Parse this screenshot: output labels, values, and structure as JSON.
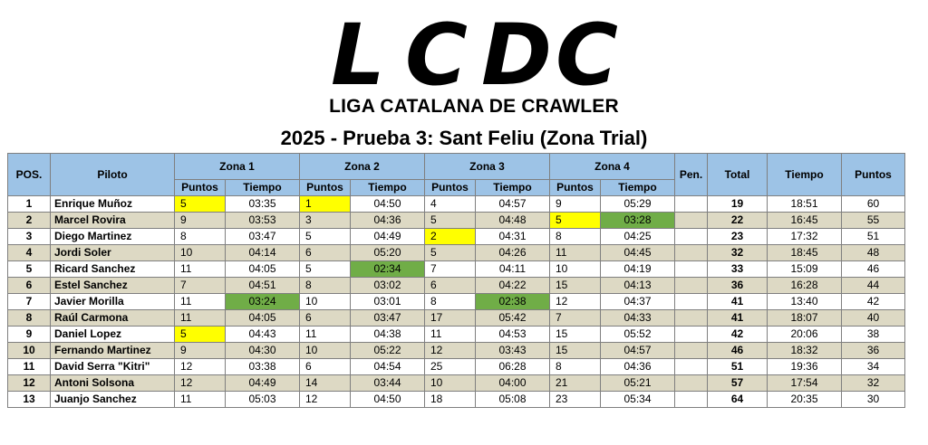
{
  "logo": {
    "letters": [
      "L",
      "C",
      "D",
      "C"
    ],
    "subtitle": "LIGA CATALANA DE CRAWLER"
  },
  "title": "2025 - Prueba 3: Sant Feliu (Zona Trial)",
  "colors": {
    "header": "#9dc3e6",
    "row_alt": "#ddd9c4",
    "highlight_points": "#ffff00",
    "highlight_time": "#70ad47"
  },
  "table": {
    "headers": {
      "pos": "POS.",
      "piloto": "Piloto",
      "zona1": "Zona 1",
      "zona2": "Zona 2",
      "zona3": "Zona 3",
      "zona4": "Zona 4",
      "pen": "Pen.",
      "total": "Total",
      "tiempo": "Tiempo",
      "puntos": "Puntos",
      "sub_puntos": "Puntos",
      "sub_tiempo": "Tiempo"
    },
    "rows": [
      {
        "pos": "1",
        "piloto": "Enrique Muñoz",
        "z1p": "5",
        "z1t": "03:35",
        "z2p": "1",
        "z2t": "04:50",
        "z3p": "4",
        "z3t": "04:57",
        "z4p": "9",
        "z4t": "05:29",
        "pen": "",
        "total": "19",
        "tiempo": "18:51",
        "puntos": "60"
      },
      {
        "pos": "2",
        "piloto": "Marcel Rovira",
        "z1p": "9",
        "z1t": "03:53",
        "z2p": "3",
        "z2t": "04:36",
        "z3p": "5",
        "z3t": "04:48",
        "z4p": "5",
        "z4t": "03:28",
        "pen": "",
        "total": "22",
        "tiempo": "16:45",
        "puntos": "55"
      },
      {
        "pos": "3",
        "piloto": "Diego Martinez",
        "z1p": "8",
        "z1t": "03:47",
        "z2p": "5",
        "z2t": "04:49",
        "z3p": "2",
        "z3t": "04:31",
        "z4p": "8",
        "z4t": "04:25",
        "pen": "",
        "total": "23",
        "tiempo": "17:32",
        "puntos": "51"
      },
      {
        "pos": "4",
        "piloto": "Jordi Soler",
        "z1p": "10",
        "z1t": "04:14",
        "z2p": "6",
        "z2t": "05:20",
        "z3p": "5",
        "z3t": "04:26",
        "z4p": "11",
        "z4t": "04:45",
        "pen": "",
        "total": "32",
        "tiempo": "18:45",
        "puntos": "48"
      },
      {
        "pos": "5",
        "piloto": "Ricard Sanchez",
        "z1p": "11",
        "z1t": "04:05",
        "z2p": "5",
        "z2t": "02:34",
        "z3p": "7",
        "z3t": "04:11",
        "z4p": "10",
        "z4t": "04:19",
        "pen": "",
        "total": "33",
        "tiempo": "15:09",
        "puntos": "46"
      },
      {
        "pos": "6",
        "piloto": "Estel Sanchez",
        "z1p": "7",
        "z1t": "04:51",
        "z2p": "8",
        "z2t": "03:02",
        "z3p": "6",
        "z3t": "04:22",
        "z4p": "15",
        "z4t": "04:13",
        "pen": "",
        "total": "36",
        "tiempo": "16:28",
        "puntos": "44"
      },
      {
        "pos": "7",
        "piloto": "Javier Morilla",
        "z1p": "11",
        "z1t": "03:24",
        "z2p": "10",
        "z2t": "03:01",
        "z3p": "8",
        "z3t": "02:38",
        "z4p": "12",
        "z4t": "04:37",
        "pen": "",
        "total": "41",
        "tiempo": "13:40",
        "puntos": "42"
      },
      {
        "pos": "8",
        "piloto": "Raúl Carmona",
        "z1p": "11",
        "z1t": "04:05",
        "z2p": "6",
        "z2t": "03:47",
        "z3p": "17",
        "z3t": "05:42",
        "z4p": "7",
        "z4t": "04:33",
        "pen": "",
        "total": "41",
        "tiempo": "18:07",
        "puntos": "40"
      },
      {
        "pos": "9",
        "piloto": "Daniel Lopez",
        "z1p": "5",
        "z1t": "04:43",
        "z2p": "11",
        "z2t": "04:38",
        "z3p": "11",
        "z3t": "04:53",
        "z4p": "15",
        "z4t": "05:52",
        "pen": "",
        "total": "42",
        "tiempo": "20:06",
        "puntos": "38"
      },
      {
        "pos": "10",
        "piloto": "Fernando Martinez",
        "z1p": "9",
        "z1t": "04:30",
        "z2p": "10",
        "z2t": "05:22",
        "z3p": "12",
        "z3t": "03:43",
        "z4p": "15",
        "z4t": "04:57",
        "pen": "",
        "total": "46",
        "tiempo": "18:32",
        "puntos": "36"
      },
      {
        "pos": "11",
        "piloto": "David Serra \"Kitri\"",
        "z1p": "12",
        "z1t": "03:38",
        "z2p": "6",
        "z2t": "04:54",
        "z3p": "25",
        "z3t": "06:28",
        "z4p": "8",
        "z4t": "04:36",
        "pen": "",
        "total": "51",
        "tiempo": "19:36",
        "puntos": "34"
      },
      {
        "pos": "12",
        "piloto": "Antoni Solsona",
        "z1p": "12",
        "z1t": "04:49",
        "z2p": "14",
        "z2t": "03:44",
        "z3p": "10",
        "z3t": "04:00",
        "z4p": "21",
        "z4t": "05:21",
        "pen": "",
        "total": "57",
        "tiempo": "17:54",
        "puntos": "32"
      },
      {
        "pos": "13",
        "piloto": "Juanjo Sanchez",
        "z1p": "11",
        "z1t": "05:03",
        "z2p": "12",
        "z2t": "04:50",
        "z3p": "18",
        "z3t": "05:08",
        "z4p": "23",
        "z4t": "05:34",
        "pen": "",
        "total": "64",
        "tiempo": "20:35",
        "puntos": "30"
      }
    ],
    "highlights": [
      {
        "row": 0,
        "field": "z1p",
        "color": "yellow"
      },
      {
        "row": 0,
        "field": "z2p",
        "color": "yellow"
      },
      {
        "row": 1,
        "field": "z4p",
        "color": "yellow"
      },
      {
        "row": 1,
        "field": "z4t",
        "color": "green"
      },
      {
        "row": 2,
        "field": "z3p",
        "color": "yellow"
      },
      {
        "row": 4,
        "field": "z2t",
        "color": "green"
      },
      {
        "row": 6,
        "field": "z1t",
        "color": "green"
      },
      {
        "row": 6,
        "field": "z3t",
        "color": "green"
      },
      {
        "row": 8,
        "field": "z1p",
        "color": "yellow"
      }
    ]
  }
}
